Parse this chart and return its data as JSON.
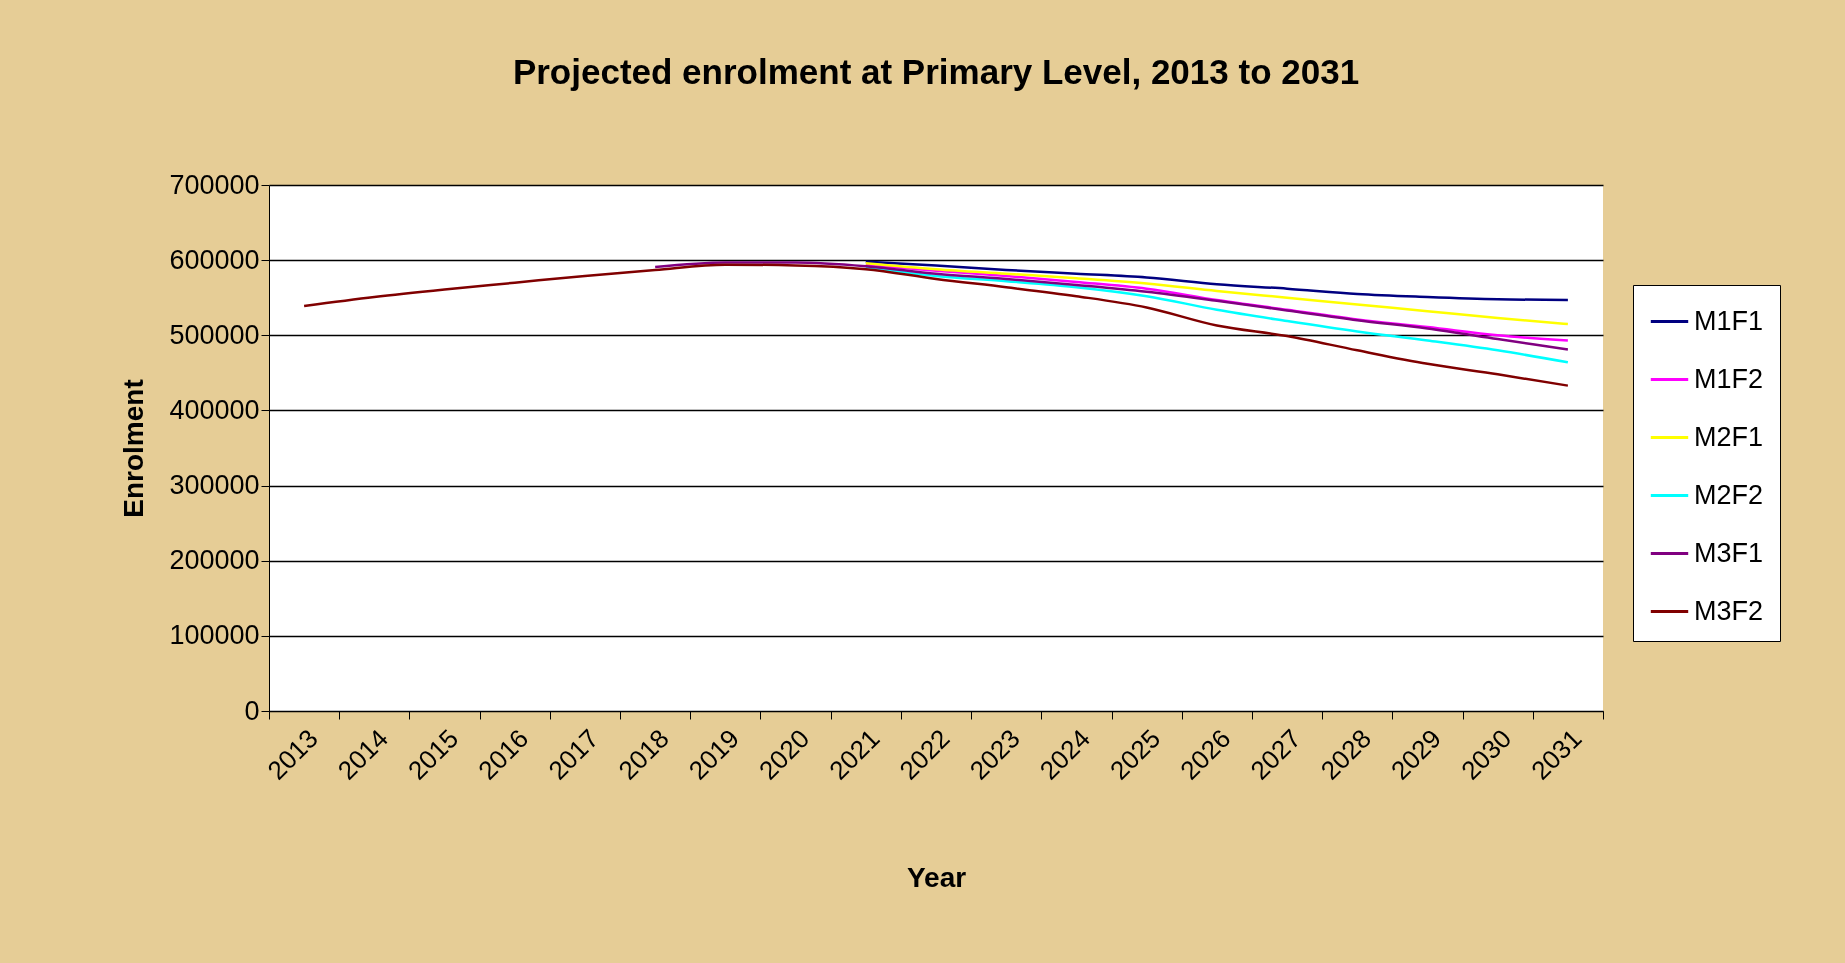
{
  "chart_data": {
    "type": "line",
    "title": "Projected enrolment at Primary Level, 2013 to 2031",
    "xlabel": "Year",
    "ylabel": "Enrolment",
    "categories": [
      "2013",
      "2014",
      "2015",
      "2016",
      "2017",
      "2018",
      "2019",
      "2020",
      "2021",
      "2022",
      "2023",
      "2024",
      "2025",
      "2026",
      "2027",
      "2028",
      "2029",
      "2030",
      "2031"
    ],
    "series": [
      {
        "name": "M1F1",
        "color": "#000080",
        "values": [
          null,
          null,
          null,
          null,
          null,
          null,
          null,
          null,
          598000,
          593000,
          587000,
          582000,
          577000,
          568000,
          562000,
          555000,
          551000,
          548000,
          547000
        ]
      },
      {
        "name": "M1F2",
        "color": "#ff00ff",
        "values": [
          null,
          null,
          null,
          null,
          null,
          null,
          null,
          null,
          594000,
          586000,
          579000,
          571000,
          562000,
          547000,
          534000,
          521000,
          511000,
          500000,
          493000
        ]
      },
      {
        "name": "M2F1",
        "color": "#ffff00",
        "values": [
          null,
          null,
          null,
          null,
          null,
          null,
          null,
          null,
          596000,
          588000,
          582000,
          576000,
          569000,
          559000,
          550000,
          541000,
          532000,
          523000,
          515000
        ]
      },
      {
        "name": "M2F2",
        "color": "#00ffff",
        "values": [
          null,
          null,
          null,
          null,
          null,
          null,
          null,
          null,
          591000,
          579000,
          572000,
          564000,
          552000,
          534000,
          519000,
          505000,
          493000,
          480000,
          464000
        ]
      },
      {
        "name": "M3F1",
        "color": "#800080",
        "values": [
          null,
          null,
          null,
          null,
          null,
          591000,
          597000,
          597000,
          592000,
          582000,
          575000,
          567000,
          558000,
          546000,
          533000,
          520000,
          509000,
          495000,
          481000
        ]
      },
      {
        "name": "M3F2",
        "color": "#800000",
        "values": [
          539000,
          551000,
          561000,
          570000,
          579000,
          587000,
          594000,
          593000,
          588000,
          575000,
          564000,
          552000,
          537000,
          513000,
          499000,
          480000,
          462000,
          448000,
          433000
        ]
      }
    ],
    "ylim": [
      0,
      700000
    ],
    "yticks": [
      0,
      100000,
      200000,
      300000,
      400000,
      500000,
      600000,
      700000
    ],
    "grid": "y",
    "legend": "right",
    "line_style": "solid"
  }
}
